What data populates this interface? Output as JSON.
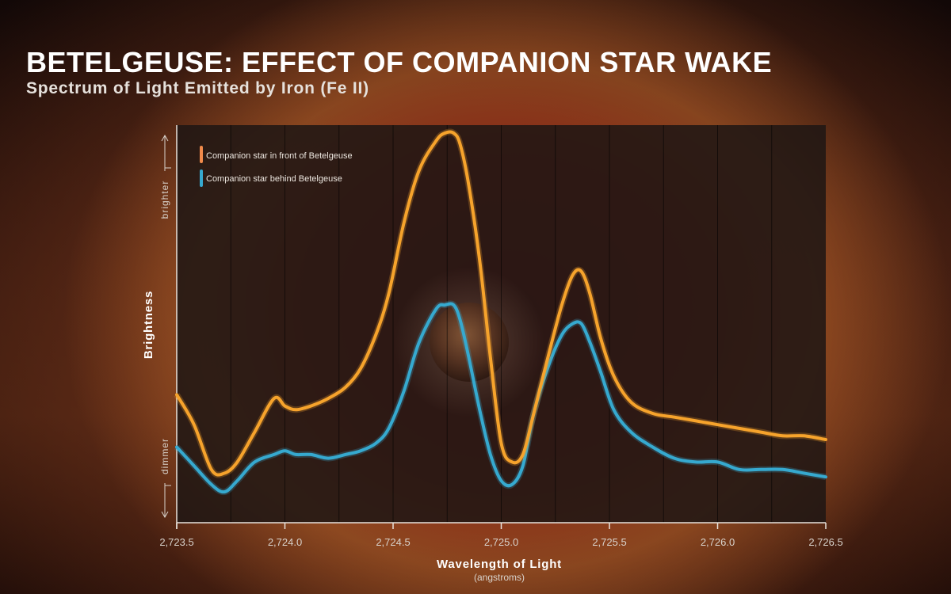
{
  "title": "BETELGEUSE: EFFECT OF COMPANION STAR WAKE",
  "subtitle": "Spectrum of Light Emitted by Iron (Fe II)",
  "chart_data": {
    "type": "line",
    "title": "BETELGEUSE: EFFECT OF COMPANION STAR WAKE",
    "subtitle": "Spectrum of Light Emitted by Iron (Fe II)",
    "xlabel": "Wavelength of Light",
    "xlabel_sub": "(angstroms)",
    "ylabel": "Brightness",
    "y_top_label": "brighter",
    "y_bottom_label": "dimmer",
    "xlim": [
      2723.5,
      2726.5
    ],
    "ylim": [
      0,
      100
    ],
    "grid": true,
    "x_ticks": [
      2723.5,
      2724.0,
      2724.5,
      2725.0,
      2725.5,
      2726.0,
      2726.5
    ],
    "x_tick_labels": [
      "2,723.5",
      "2,724.0",
      "2,724.5",
      "2,725.0",
      "2,725.5",
      "2,726.0",
      "2,726.5"
    ],
    "legend_position": "top-left",
    "colors": {
      "front": "#f6a32c",
      "behind": "#36a9cf",
      "front_legend": "#f08a4b"
    },
    "series": [
      {
        "name": "Companion star in front of Betelgeuse",
        "key": "front",
        "x": [
          2723.5,
          2723.58,
          2723.66,
          2723.72,
          2723.78,
          2723.86,
          2723.95,
          2724.0,
          2724.05,
          2724.12,
          2724.2,
          2724.28,
          2724.35,
          2724.42,
          2724.48,
          2724.55,
          2724.62,
          2724.7,
          2724.74,
          2724.78,
          2724.81,
          2724.85,
          2724.9,
          2724.95,
          2725.0,
          2725.05,
          2725.1,
          2725.15,
          2725.22,
          2725.28,
          2725.33,
          2725.37,
          2725.41,
          2725.46,
          2725.52,
          2725.6,
          2725.7,
          2725.8,
          2725.9,
          2726.0,
          2726.1,
          2726.2,
          2726.3,
          2726.4,
          2726.5
        ],
        "values": [
          30,
          22,
          10,
          9,
          12,
          20,
          29,
          27,
          26,
          27,
          29,
          32,
          37,
          46,
          57,
          76,
          90,
          98,
          100,
          100,
          97,
          86,
          66,
          40,
          17,
          12,
          14,
          25,
          41,
          54,
          62,
          63,
          57,
          45,
          35,
          28,
          25,
          24,
          23,
          22,
          21,
          20,
          19,
          19,
          18
        ]
      },
      {
        "name": "Companion star behind Betelgeuse",
        "key": "behind",
        "x": [
          2723.5,
          2723.58,
          2723.66,
          2723.72,
          2723.78,
          2723.86,
          2723.95,
          2724.0,
          2724.05,
          2724.12,
          2724.2,
          2724.28,
          2724.35,
          2724.42,
          2724.48,
          2724.55,
          2724.62,
          2724.7,
          2724.74,
          2724.78,
          2724.81,
          2724.85,
          2724.9,
          2724.95,
          2725.0,
          2725.05,
          2725.1,
          2725.15,
          2725.22,
          2725.28,
          2725.33,
          2725.37,
          2725.41,
          2725.46,
          2725.52,
          2725.6,
          2725.7,
          2725.8,
          2725.9,
          2726.0,
          2726.1,
          2726.2,
          2726.3,
          2726.4,
          2726.5
        ],
        "values": [
          16,
          11,
          6,
          4,
          7,
          12,
          14,
          15,
          14,
          14,
          13,
          14,
          15,
          17,
          21,
          31,
          44,
          53,
          54,
          54,
          50,
          40,
          26,
          14,
          7,
          6,
          11,
          25,
          38,
          46,
          49,
          49,
          44,
          36,
          26,
          20,
          16,
          13,
          12,
          12,
          10,
          10,
          10,
          9,
          8
        ]
      }
    ]
  }
}
